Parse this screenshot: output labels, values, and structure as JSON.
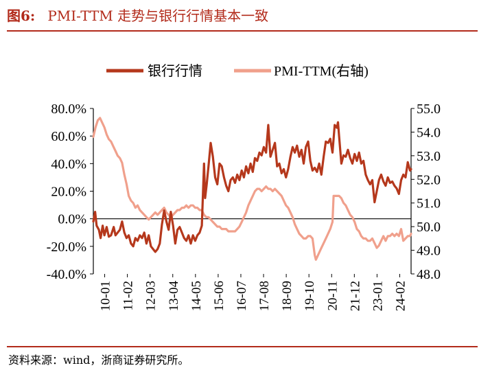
{
  "figure": {
    "label": "图6:",
    "title": "PMI-TTM 走势与银行行情基本一致",
    "source": "资料来源：wind，浙商证券研究所。"
  },
  "colors": {
    "accent": "#b22a1a",
    "series1": "#b5381c",
    "series2": "#f0a08c"
  },
  "chart_data": {
    "type": "line",
    "legend_position": "top-center",
    "grid": false,
    "x_ticks": [
      "10-01",
      "11-02",
      "12-03",
      "13-04",
      "14-05",
      "15-06",
      "16-07",
      "17-08",
      "18-09",
      "19-10",
      "20-11",
      "21-12",
      "23-01",
      "24-02"
    ],
    "y_left": {
      "lim": [
        -40,
        80
      ],
      "ticks": [
        "-40.0%",
        "-20.0%",
        "0.0%",
        "20.0%",
        "40.0%",
        "60.0%",
        "80.0%"
      ]
    },
    "y_right": {
      "lim": [
        48,
        55
      ],
      "ticks": [
        "48.0",
        "49.0",
        "50.0",
        "51.0",
        "52.0",
        "53.0",
        "54.0",
        "55.0"
      ]
    },
    "x_range": [
      2010.0,
      2024.35
    ],
    "series": [
      {
        "name": "银行行情",
        "axis": "left",
        "points": [
          [
            2010.0,
            -2
          ],
          [
            2010.08,
            5
          ],
          [
            2010.15,
            -5
          ],
          [
            2010.25,
            -8
          ],
          [
            2010.33,
            -14
          ],
          [
            2010.42,
            -5
          ],
          [
            2010.5,
            -12
          ],
          [
            2010.6,
            -6
          ],
          [
            2010.7,
            -13
          ],
          [
            2010.8,
            -12
          ],
          [
            2010.92,
            -6
          ],
          [
            2011.0,
            -12
          ],
          [
            2011.1,
            -10
          ],
          [
            2011.2,
            -8
          ],
          [
            2011.3,
            -2
          ],
          [
            2011.4,
            -10
          ],
          [
            2011.5,
            -14
          ],
          [
            2011.6,
            -12
          ],
          [
            2011.7,
            -18
          ],
          [
            2011.8,
            -20
          ],
          [
            2011.9,
            -14
          ],
          [
            2012.0,
            -16
          ],
          [
            2012.1,
            -12
          ],
          [
            2012.2,
            -14
          ],
          [
            2012.3,
            -10
          ],
          [
            2012.4,
            -18
          ],
          [
            2012.5,
            -12
          ],
          [
            2012.6,
            -20
          ],
          [
            2012.7,
            -22
          ],
          [
            2012.8,
            -24
          ],
          [
            2012.9,
            -22
          ],
          [
            2013.0,
            -18
          ],
          [
            2013.1,
            -4
          ],
          [
            2013.2,
            6
          ],
          [
            2013.3,
            -2
          ],
          [
            2013.4,
            -8
          ],
          [
            2013.5,
            5
          ],
          [
            2013.6,
            -5
          ],
          [
            2013.7,
            -18
          ],
          [
            2013.8,
            -8
          ],
          [
            2013.9,
            -6
          ],
          [
            2014.0,
            -10
          ],
          [
            2014.1,
            -14
          ],
          [
            2014.2,
            -16
          ],
          [
            2014.3,
            -12
          ],
          [
            2014.4,
            -18
          ],
          [
            2014.5,
            -12
          ],
          [
            2014.6,
            -16
          ],
          [
            2014.7,
            -12
          ],
          [
            2014.8,
            -10
          ],
          [
            2014.9,
            -5
          ],
          [
            2015.0,
            40
          ],
          [
            2015.05,
            15
          ],
          [
            2015.12,
            25
          ],
          [
            2015.2,
            38
          ],
          [
            2015.3,
            55
          ],
          [
            2015.4,
            45
          ],
          [
            2015.5,
            30
          ],
          [
            2015.6,
            25
          ],
          [
            2015.7,
            40
          ],
          [
            2015.8,
            38
          ],
          [
            2015.9,
            30
          ],
          [
            2016.0,
            24
          ],
          [
            2016.1,
            20
          ],
          [
            2016.2,
            28
          ],
          [
            2016.3,
            30
          ],
          [
            2016.4,
            26
          ],
          [
            2016.5,
            32
          ],
          [
            2016.6,
            28
          ],
          [
            2016.7,
            35
          ],
          [
            2016.8,
            30
          ],
          [
            2016.9,
            38
          ],
          [
            2017.0,
            33
          ],
          [
            2017.1,
            40
          ],
          [
            2017.2,
            34
          ],
          [
            2017.3,
            44
          ],
          [
            2017.4,
            42
          ],
          [
            2017.5,
            48
          ],
          [
            2017.6,
            46
          ],
          [
            2017.7,
            52
          ],
          [
            2017.8,
            48
          ],
          [
            2017.9,
            68
          ],
          [
            2018.0,
            45
          ],
          [
            2018.1,
            50
          ],
          [
            2018.2,
            55
          ],
          [
            2018.3,
            38
          ],
          [
            2018.4,
            40
          ],
          [
            2018.5,
            33
          ],
          [
            2018.6,
            36
          ],
          [
            2018.7,
            30
          ],
          [
            2018.8,
            36
          ],
          [
            2018.9,
            45
          ],
          [
            2019.0,
            52
          ],
          [
            2019.1,
            48
          ],
          [
            2019.2,
            53
          ],
          [
            2019.3,
            45
          ],
          [
            2019.4,
            50
          ],
          [
            2019.5,
            40
          ],
          [
            2019.6,
            52
          ],
          [
            2019.7,
            56
          ],
          [
            2019.8,
            42
          ],
          [
            2019.9,
            35
          ],
          [
            2020.0,
            37
          ],
          [
            2020.1,
            34
          ],
          [
            2020.2,
            40
          ],
          [
            2020.3,
            32
          ],
          [
            2020.4,
            45
          ],
          [
            2020.5,
            56
          ],
          [
            2020.6,
            55
          ],
          [
            2020.7,
            58
          ],
          [
            2020.8,
            48
          ],
          [
            2020.9,
            68
          ],
          [
            2021.0,
            66
          ],
          [
            2021.05,
            70
          ],
          [
            2021.1,
            60
          ],
          [
            2021.2,
            40
          ],
          [
            2021.3,
            46
          ],
          [
            2021.4,
            45
          ],
          [
            2021.5,
            50
          ],
          [
            2021.6,
            44
          ],
          [
            2021.7,
            40
          ],
          [
            2021.8,
            47
          ],
          [
            2021.9,
            42
          ],
          [
            2022.0,
            48
          ],
          [
            2022.1,
            40
          ],
          [
            2022.2,
            42
          ],
          [
            2022.3,
            32
          ],
          [
            2022.4,
            28
          ],
          [
            2022.5,
            25
          ],
          [
            2022.6,
            28
          ],
          [
            2022.7,
            12
          ],
          [
            2022.8,
            20
          ],
          [
            2022.9,
            28
          ],
          [
            2023.0,
            32
          ],
          [
            2023.1,
            27
          ],
          [
            2023.2,
            24
          ],
          [
            2023.3,
            30
          ],
          [
            2023.4,
            26
          ],
          [
            2023.5,
            27
          ],
          [
            2023.6,
            24
          ],
          [
            2023.7,
            22
          ],
          [
            2023.8,
            18
          ],
          [
            2023.9,
            28
          ],
          [
            2024.0,
            32
          ],
          [
            2024.1,
            30
          ],
          [
            2024.2,
            41
          ],
          [
            2024.3,
            35
          ],
          [
            2024.35,
            36
          ]
        ]
      },
      {
        "name": "PMI-TTM(右轴)",
        "axis": "right",
        "points": [
          [
            2010.0,
            53.8
          ],
          [
            2010.1,
            54.2
          ],
          [
            2010.2,
            54.5
          ],
          [
            2010.3,
            54.6
          ],
          [
            2010.4,
            54.4
          ],
          [
            2010.5,
            54.2
          ],
          [
            2010.6,
            53.9
          ],
          [
            2010.7,
            53.7
          ],
          [
            2010.8,
            53.6
          ],
          [
            2010.9,
            53.4
          ],
          [
            2011.0,
            53.2
          ],
          [
            2011.1,
            53.0
          ],
          [
            2011.2,
            52.9
          ],
          [
            2011.3,
            52.7
          ],
          [
            2011.4,
            52.2
          ],
          [
            2011.5,
            51.8
          ],
          [
            2011.6,
            51.3
          ],
          [
            2011.7,
            51.1
          ],
          [
            2011.8,
            51.0
          ],
          [
            2011.9,
            50.8
          ],
          [
            2012.0,
            50.9
          ],
          [
            2012.1,
            50.7
          ],
          [
            2012.2,
            50.6
          ],
          [
            2012.3,
            50.5
          ],
          [
            2012.4,
            50.4
          ],
          [
            2012.5,
            50.3
          ],
          [
            2012.6,
            50.4
          ],
          [
            2012.7,
            50.5
          ],
          [
            2012.8,
            50.6
          ],
          [
            2012.9,
            50.5
          ],
          [
            2013.0,
            50.6
          ],
          [
            2013.1,
            50.7
          ],
          [
            2013.2,
            50.8
          ],
          [
            2013.3,
            50.6
          ],
          [
            2013.4,
            50.5
          ],
          [
            2013.5,
            50.4
          ],
          [
            2013.6,
            50.5
          ],
          [
            2013.7,
            50.6
          ],
          [
            2013.8,
            50.7
          ],
          [
            2013.9,
            50.7
          ],
          [
            2014.0,
            50.8
          ],
          [
            2014.1,
            50.8
          ],
          [
            2014.2,
            50.9
          ],
          [
            2014.3,
            50.8
          ],
          [
            2014.4,
            50.9
          ],
          [
            2014.5,
            50.9
          ],
          [
            2014.6,
            50.8
          ],
          [
            2014.7,
            50.8
          ],
          [
            2014.8,
            50.7
          ],
          [
            2014.9,
            50.7
          ],
          [
            2015.0,
            50.5
          ],
          [
            2015.1,
            50.4
          ],
          [
            2015.2,
            50.4
          ],
          [
            2015.3,
            50.3
          ],
          [
            2015.4,
            50.2
          ],
          [
            2015.5,
            50.1
          ],
          [
            2015.6,
            50.0
          ],
          [
            2015.7,
            50.0
          ],
          [
            2015.8,
            49.9
          ],
          [
            2015.9,
            49.9
          ],
          [
            2016.0,
            49.9
          ],
          [
            2016.1,
            49.8
          ],
          [
            2016.2,
            49.8
          ],
          [
            2016.3,
            49.8
          ],
          [
            2016.4,
            49.8
          ],
          [
            2016.5,
            49.9
          ],
          [
            2016.6,
            50.0
          ],
          [
            2016.7,
            50.2
          ],
          [
            2016.8,
            50.4
          ],
          [
            2016.9,
            50.6
          ],
          [
            2017.0,
            50.9
          ],
          [
            2017.1,
            51.1
          ],
          [
            2017.2,
            51.3
          ],
          [
            2017.3,
            51.5
          ],
          [
            2017.4,
            51.6
          ],
          [
            2017.5,
            51.6
          ],
          [
            2017.6,
            51.5
          ],
          [
            2017.7,
            51.6
          ],
          [
            2017.8,
            51.7
          ],
          [
            2017.9,
            51.6
          ],
          [
            2018.0,
            51.6
          ],
          [
            2018.1,
            51.5
          ],
          [
            2018.2,
            51.6
          ],
          [
            2018.3,
            51.5
          ],
          [
            2018.4,
            51.4
          ],
          [
            2018.5,
            51.3
          ],
          [
            2018.6,
            51.1
          ],
          [
            2018.7,
            50.9
          ],
          [
            2018.8,
            50.8
          ],
          [
            2018.9,
            50.6
          ],
          [
            2019.0,
            50.4
          ],
          [
            2019.1,
            50.1
          ],
          [
            2019.2,
            49.9
          ],
          [
            2019.3,
            49.7
          ],
          [
            2019.4,
            49.6
          ],
          [
            2019.5,
            49.5
          ],
          [
            2019.6,
            49.5
          ],
          [
            2019.7,
            49.6
          ],
          [
            2019.8,
            49.6
          ],
          [
            2019.9,
            49.5
          ],
          [
            2020.0,
            48.8
          ],
          [
            2020.05,
            48.6
          ],
          [
            2020.1,
            48.7
          ],
          [
            2020.2,
            48.9
          ],
          [
            2020.3,
            49.1
          ],
          [
            2020.4,
            49.3
          ],
          [
            2020.5,
            49.5
          ],
          [
            2020.6,
            49.7
          ],
          [
            2020.7,
            49.9
          ],
          [
            2020.8,
            50.2
          ],
          [
            2020.85,
            51.3
          ],
          [
            2020.9,
            51.3
          ],
          [
            2021.0,
            51.3
          ],
          [
            2021.1,
            51.3
          ],
          [
            2021.2,
            51.2
          ],
          [
            2021.3,
            51.0
          ],
          [
            2021.4,
            50.9
          ],
          [
            2021.5,
            50.7
          ],
          [
            2021.6,
            50.5
          ],
          [
            2021.7,
            50.4
          ],
          [
            2021.8,
            50.2
          ],
          [
            2021.9,
            49.9
          ],
          [
            2022.0,
            49.8
          ],
          [
            2022.1,
            49.6
          ],
          [
            2022.2,
            49.5
          ],
          [
            2022.3,
            49.5
          ],
          [
            2022.4,
            49.4
          ],
          [
            2022.5,
            49.4
          ],
          [
            2022.6,
            49.5
          ],
          [
            2022.7,
            49.3
          ],
          [
            2022.8,
            49.1
          ],
          [
            2022.9,
            49.2
          ],
          [
            2023.0,
            49.4
          ],
          [
            2023.1,
            49.6
          ],
          [
            2023.2,
            49.4
          ],
          [
            2023.3,
            49.6
          ],
          [
            2023.4,
            49.6
          ],
          [
            2023.5,
            49.7
          ],
          [
            2023.6,
            49.6
          ],
          [
            2023.7,
            49.7
          ],
          [
            2023.8,
            49.6
          ],
          [
            2023.9,
            49.9
          ],
          [
            2024.0,
            49.4
          ],
          [
            2024.1,
            49.5
          ],
          [
            2024.2,
            49.6
          ],
          [
            2024.3,
            49.6
          ],
          [
            2024.35,
            49.7
          ]
        ]
      }
    ]
  }
}
